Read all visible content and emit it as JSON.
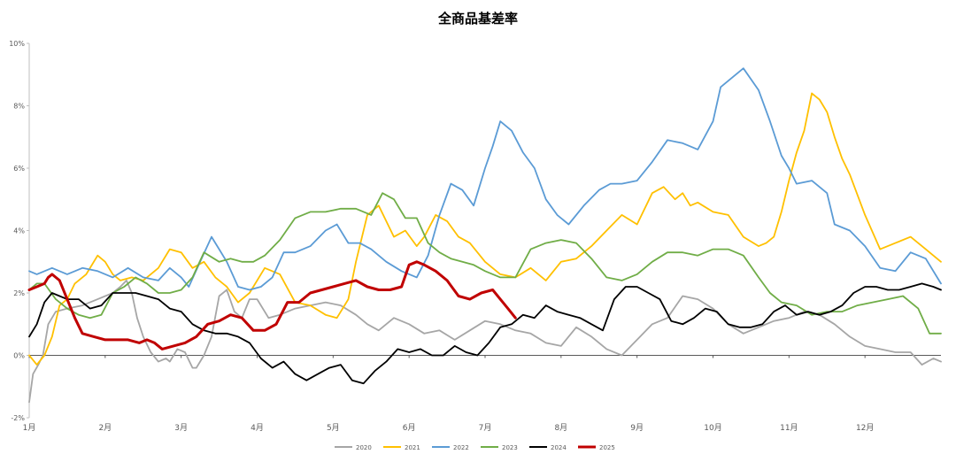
{
  "chart_data": {
    "type": "line",
    "title": "全商品基差率",
    "xlabel": "",
    "ylabel": "",
    "ylim": [
      -0.02,
      0.1
    ],
    "xlim": [
      0,
      12
    ],
    "y_ticks": [
      {
        "value": -0.02,
        "label": "-2%"
      },
      {
        "value": 0.0,
        "label": "0%"
      },
      {
        "value": 0.02,
        "label": "2%"
      },
      {
        "value": 0.04,
        "label": "4%"
      },
      {
        "value": 0.06,
        "label": "6%"
      },
      {
        "value": 0.08,
        "label": "8%"
      },
      {
        "value": 0.1,
        "label": "10%"
      }
    ],
    "x_ticks": [
      {
        "value": 0,
        "label": "1月"
      },
      {
        "value": 1,
        "label": "2月"
      },
      {
        "value": 2,
        "label": "3月"
      },
      {
        "value": 3,
        "label": "4月"
      },
      {
        "value": 4,
        "label": "5月"
      },
      {
        "value": 5,
        "label": "6月"
      },
      {
        "value": 6,
        "label": "7月"
      },
      {
        "value": 7,
        "label": "8月"
      },
      {
        "value": 8,
        "label": "9月"
      },
      {
        "value": 9,
        "label": "10月"
      },
      {
        "value": 10,
        "label": "11月"
      },
      {
        "value": 11,
        "label": "12月"
      }
    ],
    "grid": false,
    "legend_position": "bottom",
    "series": [
      {
        "name": "2020",
        "color": "#a6a6a6",
        "x": [
          0.0,
          0.05,
          0.12,
          0.18,
          0.25,
          0.35,
          0.5,
          0.7,
          0.9,
          1.1,
          1.2,
          1.28,
          1.35,
          1.42,
          1.5,
          1.6,
          1.7,
          1.8,
          1.85,
          1.95,
          2.05,
          2.15,
          2.2,
          2.3,
          2.4,
          2.5,
          2.6,
          2.7,
          2.8,
          2.9,
          3.0,
          3.15,
          3.3,
          3.5,
          3.7,
          3.9,
          4.1,
          4.3,
          4.45,
          4.6,
          4.8,
          5.0,
          5.2,
          5.4,
          5.6,
          5.8,
          6.0,
          6.2,
          6.4,
          6.6,
          6.8,
          7.0,
          7.2,
          7.4,
          7.6,
          7.8,
          8.0,
          8.2,
          8.4,
          8.6,
          8.8,
          9.0,
          9.2,
          9.4,
          9.6,
          9.8,
          10.0,
          10.2,
          10.4,
          10.6,
          10.8,
          11.0,
          11.2,
          11.4,
          11.6,
          11.75,
          11.9,
          12.0
        ],
        "values": [
          -0.015,
          -0.006,
          -0.003,
          0.0,
          0.01,
          0.014,
          0.015,
          0.016,
          0.018,
          0.02,
          0.022,
          0.024,
          0.02,
          0.012,
          0.006,
          0.001,
          -0.002,
          -0.001,
          -0.002,
          0.002,
          0.001,
          -0.004,
          -0.004,
          0.0,
          0.006,
          0.019,
          0.021,
          0.014,
          0.012,
          0.018,
          0.018,
          0.012,
          0.013,
          0.015,
          0.016,
          0.017,
          0.016,
          0.013,
          0.01,
          0.008,
          0.012,
          0.01,
          0.007,
          0.008,
          0.005,
          0.008,
          0.011,
          0.01,
          0.008,
          0.007,
          0.004,
          0.003,
          0.009,
          0.006,
          0.002,
          0.0,
          0.005,
          0.01,
          0.012,
          0.019,
          0.018,
          0.015,
          0.01,
          0.007,
          0.009,
          0.011,
          0.012,
          0.014,
          0.013,
          0.01,
          0.006,
          0.003,
          0.002,
          0.001,
          0.001,
          -0.003,
          -0.001,
          -0.002
        ]
      },
      {
        "name": "2021",
        "color": "#ffc000",
        "x": [
          0.0,
          0.1,
          0.2,
          0.3,
          0.4,
          0.5,
          0.6,
          0.75,
          0.9,
          1.0,
          1.1,
          1.2,
          1.35,
          1.5,
          1.7,
          1.85,
          2.0,
          2.15,
          2.3,
          2.45,
          2.6,
          2.75,
          2.9,
          3.1,
          3.3,
          3.5,
          3.7,
          3.9,
          4.05,
          4.2,
          4.3,
          4.45,
          4.6,
          4.8,
          4.95,
          5.1,
          5.2,
          5.35,
          5.5,
          5.65,
          5.8,
          6.0,
          6.2,
          6.4,
          6.6,
          6.8,
          7.0,
          7.2,
          7.4,
          7.6,
          7.8,
          8.0,
          8.2,
          8.35,
          8.5,
          8.6,
          8.7,
          8.8,
          9.0,
          9.2,
          9.4,
          9.6,
          9.7,
          9.8,
          9.9,
          10.0,
          10.1,
          10.2,
          10.3,
          10.4,
          10.5,
          10.6,
          10.7,
          10.8,
          11.0,
          11.2,
          11.4,
          11.6,
          11.8,
          11.9,
          12.0
        ],
        "values": [
          0.0,
          -0.003,
          0.0,
          0.006,
          0.016,
          0.018,
          0.023,
          0.026,
          0.032,
          0.03,
          0.026,
          0.024,
          0.025,
          0.024,
          0.028,
          0.034,
          0.033,
          0.028,
          0.03,
          0.025,
          0.022,
          0.017,
          0.02,
          0.028,
          0.026,
          0.017,
          0.016,
          0.013,
          0.012,
          0.018,
          0.03,
          0.045,
          0.048,
          0.038,
          0.04,
          0.035,
          0.038,
          0.045,
          0.043,
          0.038,
          0.036,
          0.03,
          0.026,
          0.025,
          0.028,
          0.024,
          0.03,
          0.031,
          0.035,
          0.04,
          0.045,
          0.042,
          0.052,
          0.054,
          0.05,
          0.052,
          0.048,
          0.049,
          0.046,
          0.045,
          0.038,
          0.035,
          0.036,
          0.038,
          0.046,
          0.056,
          0.065,
          0.072,
          0.084,
          0.082,
          0.078,
          0.07,
          0.063,
          0.058,
          0.045,
          0.034,
          0.036,
          0.038,
          0.034,
          0.032,
          0.03
        ]
      },
      {
        "name": "2022",
        "color": "#5b9bd5",
        "x": [
          0.0,
          0.1,
          0.3,
          0.5,
          0.7,
          0.9,
          1.1,
          1.3,
          1.5,
          1.7,
          1.85,
          2.0,
          2.1,
          2.25,
          2.4,
          2.5,
          2.6,
          2.75,
          2.9,
          3.05,
          3.2,
          3.35,
          3.5,
          3.7,
          3.9,
          4.05,
          4.2,
          4.35,
          4.5,
          4.7,
          4.9,
          5.1,
          5.25,
          5.4,
          5.55,
          5.7,
          5.85,
          6.0,
          6.1,
          6.2,
          6.35,
          6.5,
          6.65,
          6.8,
          6.95,
          7.1,
          7.3,
          7.5,
          7.65,
          7.8,
          8.0,
          8.2,
          8.4,
          8.6,
          8.8,
          9.0,
          9.1,
          9.2,
          9.4,
          9.6,
          9.75,
          9.9,
          10.0,
          10.1,
          10.3,
          10.5,
          10.6,
          10.8,
          11.0,
          11.2,
          11.4,
          11.6,
          11.8,
          12.0
        ],
        "values": [
          0.027,
          0.026,
          0.028,
          0.026,
          0.028,
          0.027,
          0.025,
          0.028,
          0.025,
          0.024,
          0.028,
          0.025,
          0.022,
          0.03,
          0.038,
          0.034,
          0.03,
          0.022,
          0.021,
          0.022,
          0.025,
          0.033,
          0.033,
          0.035,
          0.04,
          0.042,
          0.036,
          0.036,
          0.034,
          0.03,
          0.027,
          0.025,
          0.032,
          0.045,
          0.055,
          0.053,
          0.048,
          0.06,
          0.067,
          0.075,
          0.072,
          0.065,
          0.06,
          0.05,
          0.045,
          0.042,
          0.048,
          0.053,
          0.055,
          0.055,
          0.056,
          0.062,
          0.069,
          0.068,
          0.066,
          0.075,
          0.086,
          0.088,
          0.092,
          0.085,
          0.075,
          0.064,
          0.06,
          0.055,
          0.056,
          0.052,
          0.042,
          0.04,
          0.035,
          0.028,
          0.027,
          0.033,
          0.031,
          0.023
        ]
      },
      {
        "name": "2023",
        "color": "#70ad47",
        "x": [
          0.0,
          0.1,
          0.2,
          0.35,
          0.5,
          0.65,
          0.8,
          0.95,
          1.1,
          1.25,
          1.4,
          1.55,
          1.7,
          1.85,
          2.0,
          2.15,
          2.3,
          2.5,
          2.65,
          2.8,
          2.95,
          3.1,
          3.3,
          3.5,
          3.7,
          3.9,
          4.1,
          4.3,
          4.5,
          4.65,
          4.8,
          4.95,
          5.1,
          5.25,
          5.4,
          5.55,
          5.7,
          5.85,
          6.0,
          6.2,
          6.4,
          6.6,
          6.8,
          7.0,
          7.2,
          7.4,
          7.6,
          7.8,
          8.0,
          8.2,
          8.4,
          8.6,
          8.8,
          9.0,
          9.2,
          9.4,
          9.6,
          9.75,
          9.9,
          10.1,
          10.3,
          10.5,
          10.7,
          10.9,
          11.1,
          11.3,
          11.5,
          11.7,
          11.85,
          12.0
        ],
        "values": [
          0.021,
          0.023,
          0.023,
          0.018,
          0.015,
          0.013,
          0.012,
          0.013,
          0.02,
          0.022,
          0.025,
          0.023,
          0.02,
          0.02,
          0.021,
          0.025,
          0.033,
          0.03,
          0.031,
          0.03,
          0.03,
          0.032,
          0.037,
          0.044,
          0.046,
          0.046,
          0.047,
          0.047,
          0.045,
          0.052,
          0.05,
          0.044,
          0.044,
          0.036,
          0.033,
          0.031,
          0.03,
          0.029,
          0.027,
          0.025,
          0.025,
          0.034,
          0.036,
          0.037,
          0.036,
          0.031,
          0.025,
          0.024,
          0.026,
          0.03,
          0.033,
          0.033,
          0.032,
          0.034,
          0.034,
          0.032,
          0.025,
          0.02,
          0.017,
          0.016,
          0.013,
          0.014,
          0.014,
          0.016,
          0.017,
          0.018,
          0.019,
          0.015,
          0.007,
          0.007
        ]
      },
      {
        "name": "2024",
        "color": "#000000",
        "x": [
          0.0,
          0.1,
          0.2,
          0.3,
          0.4,
          0.5,
          0.65,
          0.8,
          0.95,
          1.1,
          1.25,
          1.4,
          1.55,
          1.7,
          1.85,
          2.0,
          2.15,
          2.3,
          2.45,
          2.6,
          2.75,
          2.9,
          3.05,
          3.2,
          3.35,
          3.5,
          3.65,
          3.8,
          3.95,
          4.1,
          4.25,
          4.4,
          4.55,
          4.7,
          4.85,
          5.0,
          5.15,
          5.3,
          5.45,
          5.6,
          5.75,
          5.9,
          6.05,
          6.2,
          6.35,
          6.5,
          6.65,
          6.8,
          6.95,
          7.1,
          7.25,
          7.4,
          7.55,
          7.7,
          7.85,
          8.0,
          8.15,
          8.3,
          8.45,
          8.6,
          8.75,
          8.9,
          9.05,
          9.2,
          9.35,
          9.5,
          9.65,
          9.8,
          9.95,
          10.1,
          10.25,
          10.4,
          10.55,
          10.7,
          10.85,
          11.0,
          11.15,
          11.3,
          11.45,
          11.6,
          11.75,
          11.9,
          12.0
        ],
        "values": [
          0.006,
          0.01,
          0.017,
          0.02,
          0.019,
          0.018,
          0.018,
          0.015,
          0.016,
          0.02,
          0.02,
          0.02,
          0.019,
          0.018,
          0.015,
          0.014,
          0.01,
          0.008,
          0.007,
          0.007,
          0.006,
          0.004,
          -0.001,
          -0.004,
          -0.002,
          -0.006,
          -0.008,
          -0.006,
          -0.004,
          -0.003,
          -0.008,
          -0.009,
          -0.005,
          -0.002,
          0.002,
          0.001,
          0.002,
          0.0,
          0.0,
          0.003,
          0.001,
          0.0,
          0.004,
          0.009,
          0.01,
          0.013,
          0.012,
          0.016,
          0.014,
          0.013,
          0.012,
          0.01,
          0.008,
          0.018,
          0.022,
          0.022,
          0.02,
          0.018,
          0.011,
          0.01,
          0.012,
          0.015,
          0.014,
          0.01,
          0.009,
          0.009,
          0.01,
          0.014,
          0.016,
          0.013,
          0.014,
          0.013,
          0.014,
          0.016,
          0.02,
          0.022,
          0.022,
          0.021,
          0.021,
          0.022,
          0.023,
          0.022,
          0.021
        ]
      },
      {
        "name": "2025",
        "color": "#c00000",
        "x": [
          0.0,
          0.1,
          0.2,
          0.25,
          0.3,
          0.4,
          0.5,
          0.6,
          0.7,
          0.85,
          1.0,
          1.15,
          1.3,
          1.45,
          1.55,
          1.65,
          1.75,
          1.9,
          2.05,
          2.2,
          2.35,
          2.5,
          2.65,
          2.8,
          2.95,
          3.1,
          3.25,
          3.4,
          3.55,
          3.7,
          3.85,
          4.0,
          4.15,
          4.3,
          4.45,
          4.6,
          4.75,
          4.9,
          5.0,
          5.1,
          5.2,
          5.35,
          5.5,
          5.65,
          5.8,
          5.95,
          6.1,
          6.2,
          6.3,
          6.4
        ],
        "values": [
          0.021,
          0.022,
          0.023,
          0.025,
          0.026,
          0.024,
          0.018,
          0.012,
          0.007,
          0.006,
          0.005,
          0.005,
          0.005,
          0.004,
          0.005,
          0.004,
          0.002,
          0.003,
          0.004,
          0.006,
          0.01,
          0.011,
          0.013,
          0.012,
          0.008,
          0.008,
          0.01,
          0.017,
          0.017,
          0.02,
          0.021,
          0.022,
          0.023,
          0.024,
          0.022,
          0.021,
          0.021,
          0.022,
          0.029,
          0.03,
          0.029,
          0.027,
          0.024,
          0.019,
          0.018,
          0.02,
          0.021,
          0.018,
          0.015,
          0.012
        ]
      }
    ]
  }
}
